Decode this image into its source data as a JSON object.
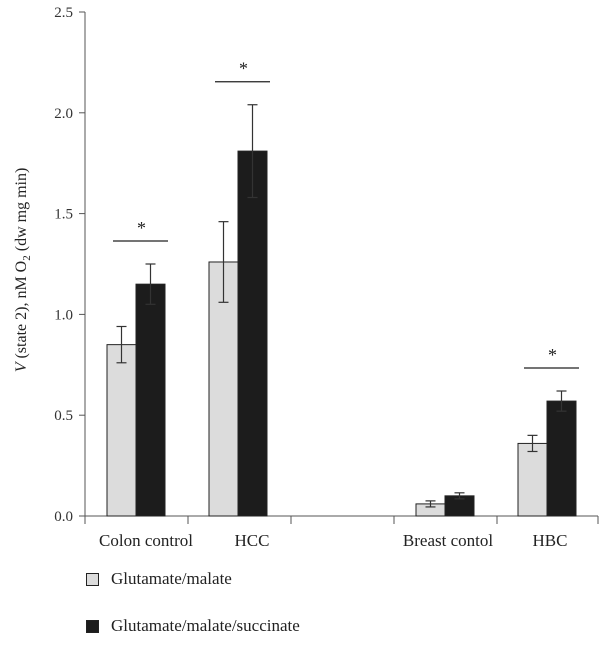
{
  "chart_data": {
    "type": "bar",
    "categories": [
      "Colon control",
      "HCC",
      "Breast contol",
      "HBC"
    ],
    "series": [
      {
        "name": "Glutamate/malate",
        "values": [
          0.85,
          1.26,
          0.06,
          0.36
        ],
        "errors": [
          0.09,
          0.2,
          0.015,
          0.04
        ],
        "color": "#dcdcdc"
      },
      {
        "name": "Glutamate/malate/succinate",
        "values": [
          1.15,
          1.81,
          0.1,
          0.57
        ],
        "errors": [
          0.1,
          0.23,
          0.015,
          0.05
        ],
        "color": "#1c1c1c"
      }
    ],
    "significance": [
      {
        "category": "Colon control",
        "label": "*"
      },
      {
        "category": "HCC",
        "label": "*"
      },
      {
        "category": "HBC",
        "label": "*"
      }
    ],
    "ylabel_parts": [
      "V",
      " (state 2), nM O",
      "2",
      " (dw mg min)"
    ],
    "ylim": [
      0,
      2.5
    ],
    "yticks": [
      "0.0",
      "0.5",
      "1.0",
      "1.5",
      "2.0",
      "2.5"
    ],
    "ytick_values": [
      0,
      0.5,
      1.0,
      1.5,
      2.0,
      2.5
    ],
    "grid": false,
    "legend_position": "bottom-left"
  }
}
